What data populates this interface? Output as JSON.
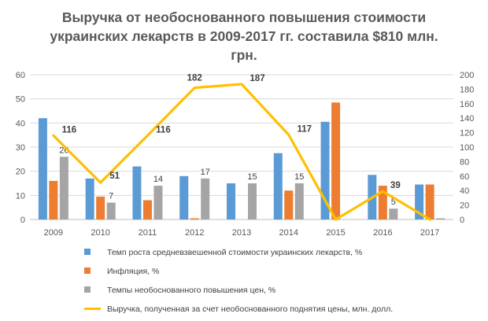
{
  "chart_data": {
    "type": "bar",
    "title": "Выручка от необоснованного повышения стоимости украинских лекарств в 2009-2017 гг. составила $810 млн. грн.",
    "title_lines": [
      "Выручка от необоснованного повышения стоимости",
      "украинских лекарств в 2009-2017 гг. составила $810 млн.",
      "грн."
    ],
    "categories": [
      "2009",
      "2010",
      "2011",
      "2012",
      "2013",
      "2014",
      "2015",
      "2016",
      "2017"
    ],
    "series": [
      {
        "name": "Темп роста средневзвешенной стоимости украинских лекарств, %",
        "type": "bar",
        "axis": "left",
        "color": "#5B9BD5",
        "values": [
          42,
          17,
          22,
          18,
          15,
          27.5,
          40.5,
          18.5,
          14.5
        ]
      },
      {
        "name": "Инфляция, %",
        "type": "bar",
        "axis": "left",
        "color": "#ED7D31",
        "values": [
          16,
          9.5,
          8,
          0.5,
          0,
          12,
          48.5,
          14,
          14.5
        ]
      },
      {
        "name": "Темпы необоснованного повышения цен, %",
        "type": "bar",
        "axis": "left",
        "color": "#A5A5A5",
        "values": [
          26,
          7,
          14,
          17,
          15,
          15,
          0,
          4.5,
          0.5
        ],
        "labels": [
          "26",
          "7",
          "14",
          "17",
          "15",
          "15",
          "",
          "5",
          ""
        ]
      },
      {
        "name": "Выручка, полученная за счет необоснованного поднятия цены, млн. долл.",
        "type": "line",
        "axis": "right",
        "color": "#FFC000",
        "values": [
          116,
          51,
          116,
          182,
          187,
          117,
          0,
          39,
          0
        ],
        "labels": [
          "116",
          "51",
          "116",
          "182",
          "187",
          "117",
          "",
          "39",
          ""
        ]
      }
    ],
    "y_left": {
      "min": 0,
      "max": 60,
      "ticks": [
        "0",
        "10",
        "20",
        "30",
        "40",
        "50",
        "60"
      ]
    },
    "y_right": {
      "min": 0,
      "max": 200,
      "ticks": [
        "0",
        "20",
        "40",
        "60",
        "80",
        "100",
        "120",
        "140",
        "160",
        "180",
        "200"
      ]
    },
    "grid": true,
    "legend_position": "bottom"
  }
}
